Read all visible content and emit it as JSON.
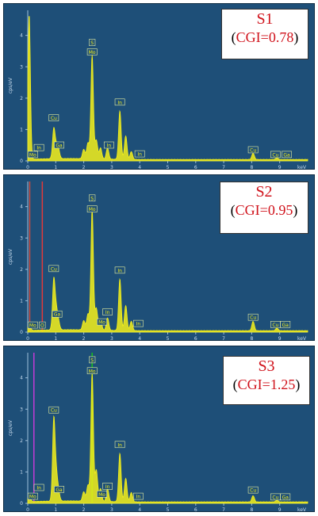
{
  "chart_data": [
    {
      "type": "line",
      "sample_label": "S1",
      "cgi_prefix": "CGI=",
      "cgi_value": "0.78",
      "xlabel": "keV",
      "ylabel": "cps/eV",
      "xlim": [
        0,
        10
      ],
      "ylim": [
        0,
        4.8
      ],
      "xticks": [
        "0",
        "1",
        "2",
        "3",
        "4",
        "5",
        "6",
        "7",
        "8",
        "9"
      ],
      "yticks": [
        "0",
        "1",
        "2",
        "3",
        "4"
      ],
      "series_color": "#f5f01a",
      "peaks": [
        {
          "x": 0.05,
          "y": 4.6
        },
        {
          "x": 0.93,
          "y": 0.95
        },
        {
          "x": 1.02,
          "y": 0.35
        },
        {
          "x": 1.1,
          "y": 0.28
        },
        {
          "x": 2.0,
          "y": 0.3
        },
        {
          "x": 2.15,
          "y": 0.5
        },
        {
          "x": 2.3,
          "y": 3.3
        },
        {
          "x": 2.45,
          "y": 0.6
        },
        {
          "x": 2.6,
          "y": 0.35
        },
        {
          "x": 2.85,
          "y": 0.35
        },
        {
          "x": 3.29,
          "y": 1.55
        },
        {
          "x": 3.5,
          "y": 0.75
        },
        {
          "x": 3.7,
          "y": 0.25
        },
        {
          "x": 8.05,
          "y": 0.2
        },
        {
          "x": 8.9,
          "y": 0.05
        }
      ],
      "annotations": [
        {
          "label": "S",
          "x": 2.3,
          "y": 3.75
        },
        {
          "label": "Mo",
          "x": 2.3,
          "y": 3.45
        },
        {
          "label": "Cu",
          "x": 0.93,
          "y": 1.35
        },
        {
          "label": "In",
          "x": 0.4,
          "y": 0.4
        },
        {
          "label": "Mo",
          "x": 0.18,
          "y": 0.18
        },
        {
          "label": "Ga",
          "x": 1.12,
          "y": 0.48
        },
        {
          "label": "In",
          "x": 3.29,
          "y": 1.85
        },
        {
          "label": "In",
          "x": 2.9,
          "y": 0.48
        },
        {
          "label": "In",
          "x": 4.0,
          "y": 0.2
        },
        {
          "label": "Cu",
          "x": 8.05,
          "y": 0.33
        },
        {
          "label": "Cu",
          "x": 8.85,
          "y": 0.18
        },
        {
          "label": "Ga",
          "x": 9.25,
          "y": 0.18
        }
      ],
      "marker_lines": []
    },
    {
      "type": "line",
      "sample_label": "S2",
      "cgi_prefix": "CGI=",
      "cgi_value": "0.95",
      "xlabel": "keV",
      "ylabel": "cps/eV",
      "xlim": [
        0,
        10
      ],
      "ylim": [
        0,
        4.8
      ],
      "xticks": [
        "0",
        "1",
        "2",
        "3",
        "4",
        "5",
        "6",
        "7",
        "8",
        "9"
      ],
      "yticks": [
        "0",
        "1",
        "2",
        "3",
        "4"
      ],
      "series_color": "#f5f01a",
      "peaks": [
        {
          "x": 0.05,
          "y": 0.2
        },
        {
          "x": 0.93,
          "y": 1.6
        },
        {
          "x": 1.02,
          "y": 0.6
        },
        {
          "x": 1.1,
          "y": 0.25
        },
        {
          "x": 2.0,
          "y": 0.3
        },
        {
          "x": 2.15,
          "y": 0.5
        },
        {
          "x": 2.3,
          "y": 3.85
        },
        {
          "x": 2.45,
          "y": 0.7
        },
        {
          "x": 2.6,
          "y": 0.35
        },
        {
          "x": 2.85,
          "y": 0.4
        },
        {
          "x": 3.29,
          "y": 1.65
        },
        {
          "x": 3.5,
          "y": 0.8
        },
        {
          "x": 3.7,
          "y": 0.3
        },
        {
          "x": 8.05,
          "y": 0.3
        },
        {
          "x": 8.9,
          "y": 0.08
        }
      ],
      "annotations": [
        {
          "label": "S",
          "x": 2.3,
          "y": 4.25
        },
        {
          "label": "Mo",
          "x": 2.3,
          "y": 3.9
        },
        {
          "label": "Cu",
          "x": 0.93,
          "y": 2.0
        },
        {
          "label": "Ga",
          "x": 1.05,
          "y": 0.55
        },
        {
          "label": "Mo",
          "x": 0.18,
          "y": 0.2
        },
        {
          "label": "O",
          "x": 0.52,
          "y": 0.2
        },
        {
          "label": "In",
          "x": 3.29,
          "y": 1.95
        },
        {
          "label": "In",
          "x": 2.85,
          "y": 0.62
        },
        {
          "label": "Mo",
          "x": 2.65,
          "y": 0.3
        },
        {
          "label": "In",
          "x": 3.95,
          "y": 0.25
        },
        {
          "label": "Cu",
          "x": 8.05,
          "y": 0.45
        },
        {
          "label": "Cu",
          "x": 8.85,
          "y": 0.22
        },
        {
          "label": "Ga",
          "x": 9.2,
          "y": 0.22
        }
      ],
      "marker_lines": [
        {
          "x": 0.52,
          "color": "#e23a3a"
        },
        {
          "x": 0.07,
          "color": "#c94b3f"
        }
      ]
    },
    {
      "type": "line",
      "sample_label": "S3",
      "cgi_prefix": "CGI=",
      "cgi_value": "1.25",
      "xlabel": "keV",
      "ylabel": "cps/eV",
      "xlim": [
        0,
        10
      ],
      "ylim": [
        0,
        4.8
      ],
      "xticks": [
        "0",
        "1",
        "2",
        "3",
        "4",
        "5",
        "6",
        "7",
        "8",
        "9"
      ],
      "yticks": [
        "0",
        "1",
        "2",
        "3",
        "4"
      ],
      "series_color": "#f5f01a",
      "peaks": [
        {
          "x": 0.05,
          "y": 0.2
        },
        {
          "x": 0.93,
          "y": 2.6
        },
        {
          "x": 1.02,
          "y": 0.8
        },
        {
          "x": 1.1,
          "y": 0.3
        },
        {
          "x": 2.0,
          "y": 0.3
        },
        {
          "x": 2.15,
          "y": 0.5
        },
        {
          "x": 2.3,
          "y": 4.1
        },
        {
          "x": 2.45,
          "y": 1.0
        },
        {
          "x": 2.6,
          "y": 0.4
        },
        {
          "x": 2.85,
          "y": 0.4
        },
        {
          "x": 3.29,
          "y": 1.55
        },
        {
          "x": 3.5,
          "y": 0.75
        },
        {
          "x": 3.7,
          "y": 0.3
        },
        {
          "x": 8.05,
          "y": 0.2
        },
        {
          "x": 8.9,
          "y": 0.05
        }
      ],
      "annotations": [
        {
          "label": "S",
          "x": 2.3,
          "y": 4.55
        },
        {
          "label": "Mo",
          "x": 2.3,
          "y": 4.2
        },
        {
          "label": "Cu",
          "x": 0.93,
          "y": 2.95
        },
        {
          "label": "In",
          "x": 0.4,
          "y": 0.48
        },
        {
          "label": "Mo",
          "x": 0.18,
          "y": 0.2
        },
        {
          "label": "Ga",
          "x": 1.12,
          "y": 0.42
        },
        {
          "label": "In",
          "x": 3.29,
          "y": 1.85
        },
        {
          "label": "In",
          "x": 2.85,
          "y": 0.52
        },
        {
          "label": "Mo",
          "x": 2.65,
          "y": 0.27
        },
        {
          "label": "In",
          "x": 3.95,
          "y": 0.2
        },
        {
          "label": "Cu",
          "x": 8.05,
          "y": 0.4
        },
        {
          "label": "Cu",
          "x": 8.85,
          "y": 0.18
        },
        {
          "label": "Ga",
          "x": 9.2,
          "y": 0.18
        }
      ],
      "marker_lines": [
        {
          "x": 0.22,
          "color": "#c23bd6"
        },
        {
          "x": 2.3,
          "color": "#17c41a"
        }
      ]
    }
  ]
}
